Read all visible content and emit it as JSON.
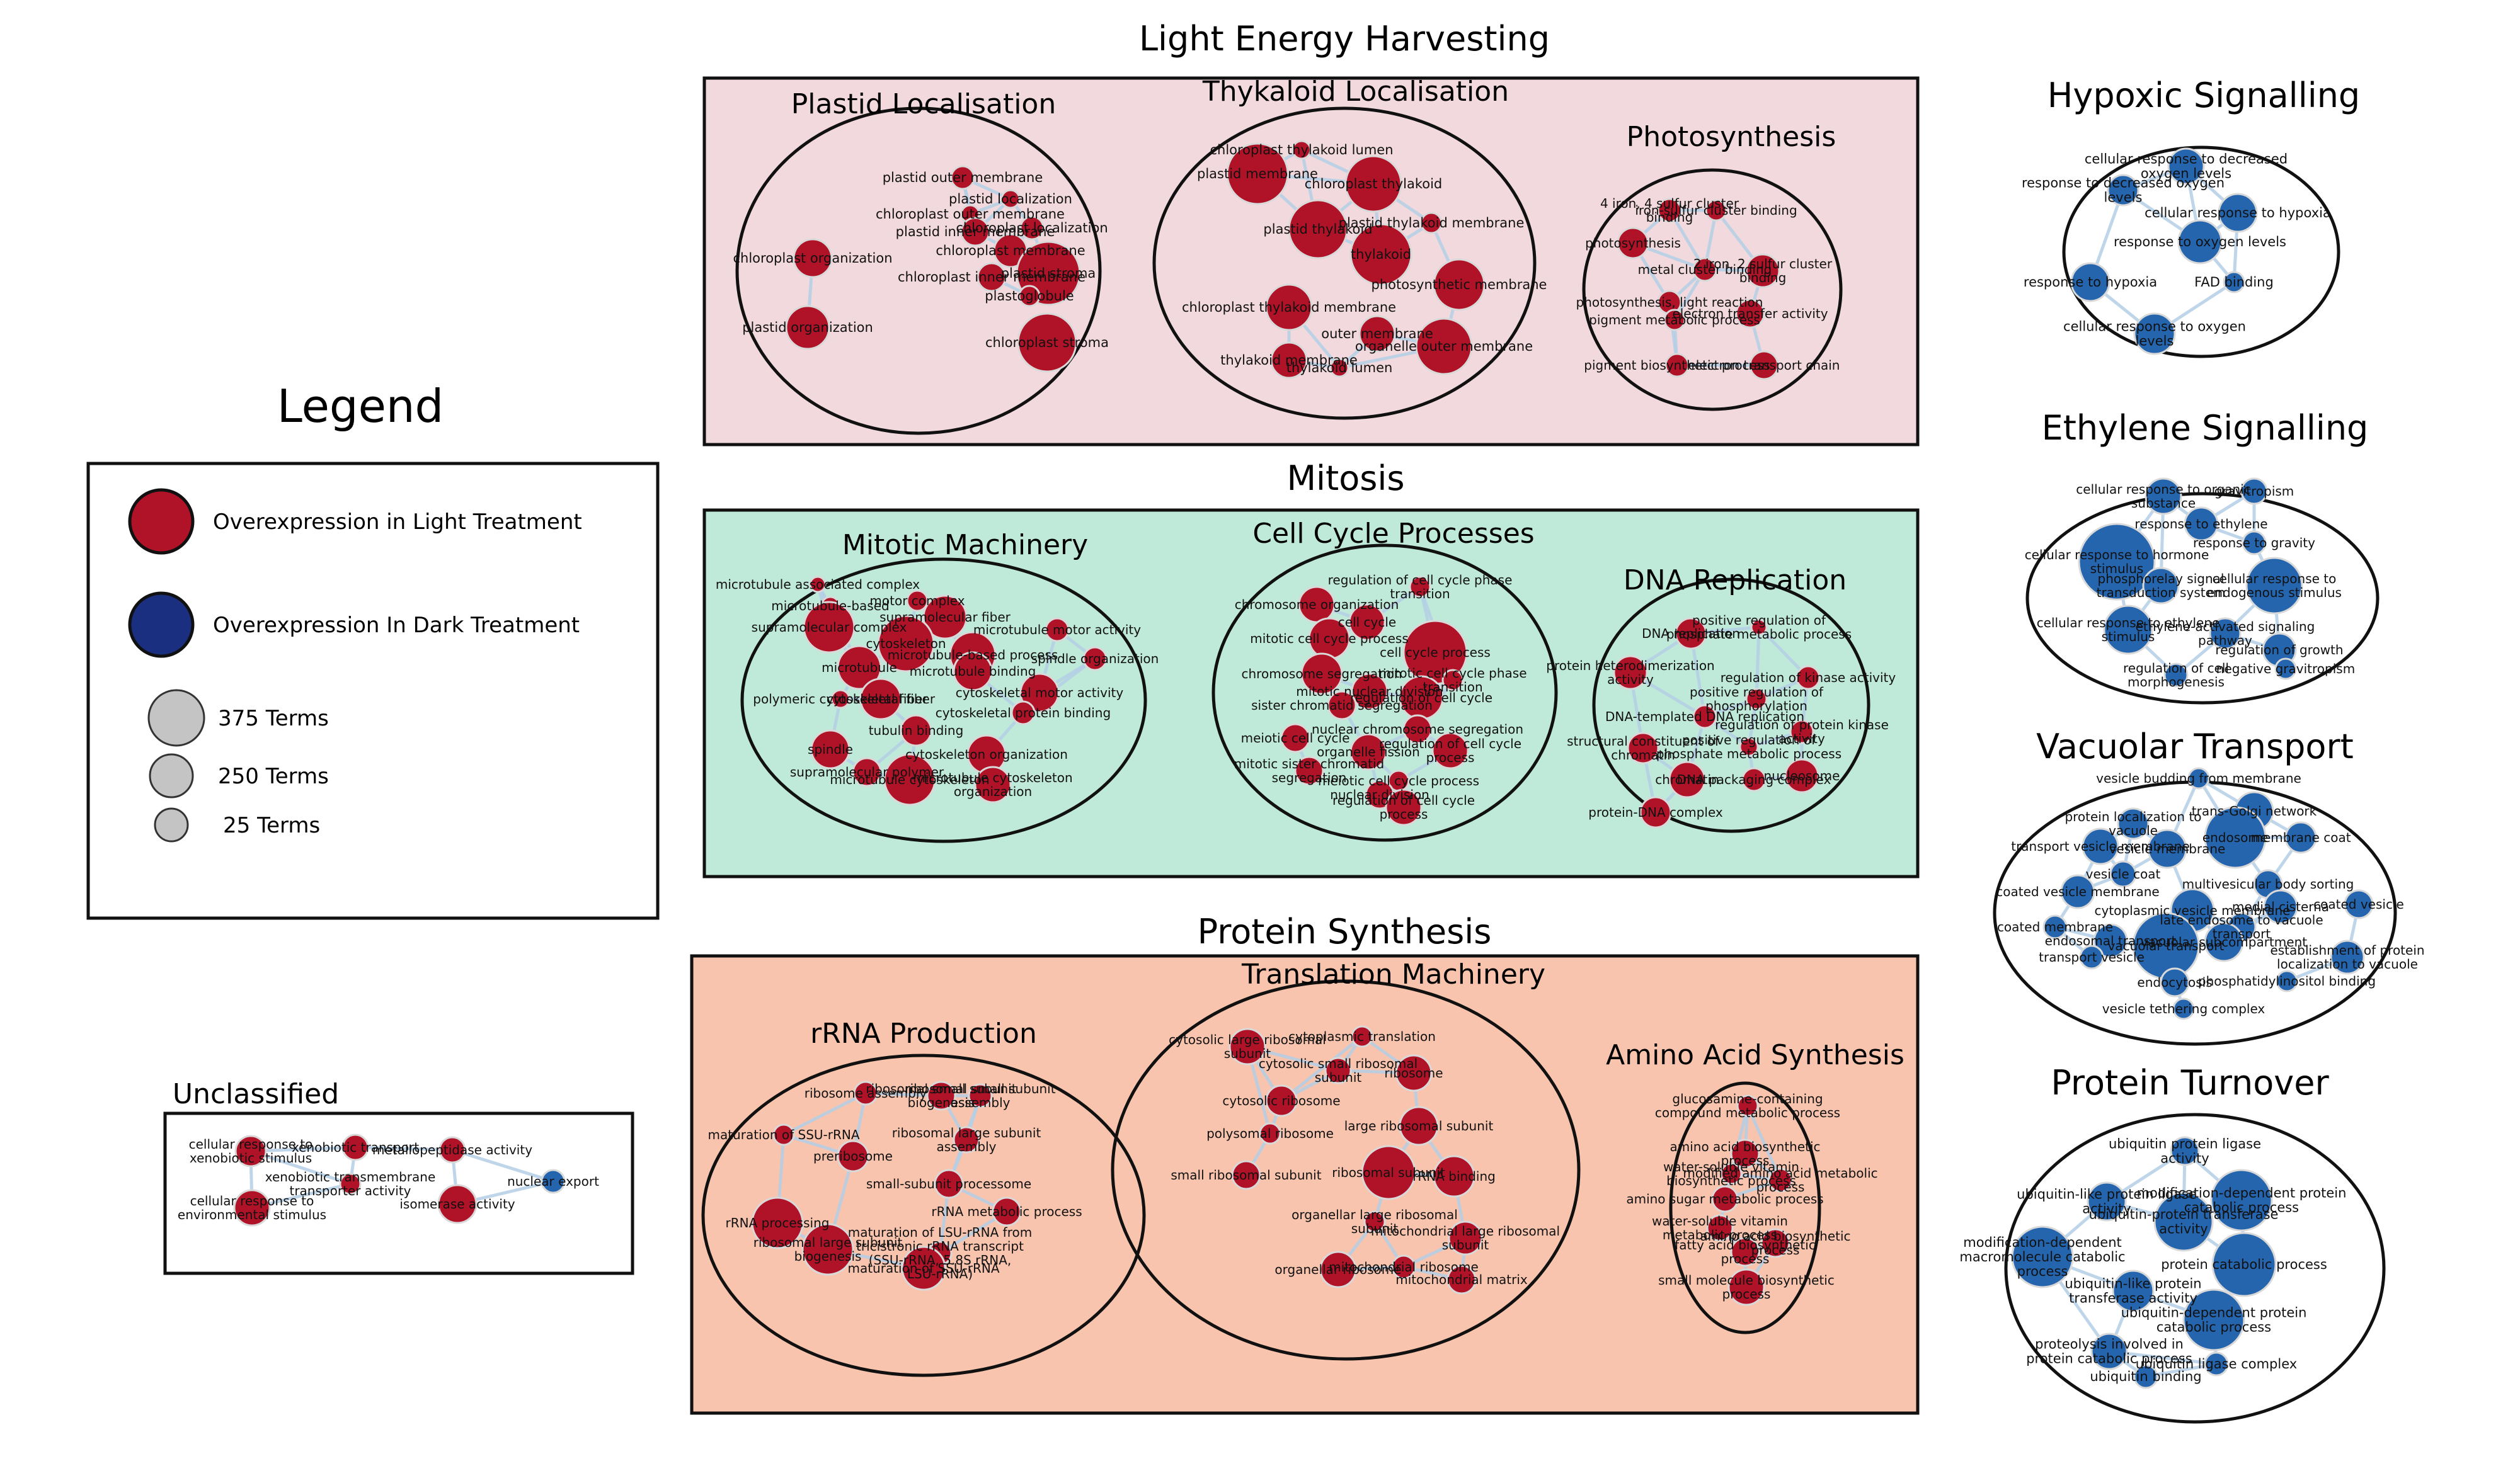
{
  "colors": {
    "red_node": "#b01227",
    "blue_node": "#2565ae",
    "legend_dark": "#1a2f80",
    "legend_gray": "#c4c4c4",
    "light_panel": "#f2d9dd",
    "mitosis_panel": "#bfe9d8",
    "protein_panel": "#f8c4ad",
    "edge": "#b4cfe6"
  },
  "sections": {
    "light": "Light Energy Harvesting",
    "mitosis": "Mitosis",
    "protein": "Protein Synthesis",
    "unclassified": "Unclassified"
  },
  "clusters": {
    "plastid": "Plastid Localisation",
    "thylakoid": "Thykaloid Localisation",
    "photosynthesis": "Photosynthesis",
    "mitotic": "Mitotic Machinery",
    "cellcycle": "Cell Cycle Processes",
    "dnarep": "DNA Replication",
    "translation": "Translation Machinery",
    "rrna": "rRNA Production",
    "aminoacid": "Amino Acid Synthesis",
    "hypoxic": "Hypoxic Signalling",
    "ethylene": "Ethylene Signalling",
    "vacuolar": "Vacuolar Transport",
    "turnover": "Protein Turnover"
  },
  "legend": {
    "title": "Legend",
    "light": "Overexpression in Light Treatment",
    "dark": "Overexpression In Dark Treatment",
    "size_large": "375 Terms",
    "size_mid": "250 Terms",
    "size_small": "25 Terms"
  },
  "node_labels": {
    "plastid": [
      "plastid outer membrane",
      "plastid localization",
      "chloroplast outer membrane",
      "chloroplast localization",
      "plastid inner membrane",
      "chloroplast membrane",
      "chloroplast organization",
      "chloroplast inner membrane",
      "plastid stroma",
      "plastoglobule",
      "plastid organization",
      "chloroplast stroma"
    ],
    "thylakoid": [
      "chloroplast thylakoid lumen",
      "plastid membrane",
      "chloroplast thylakoid",
      "plastid thylakoid membrane",
      "plastid thylakoid",
      "thylakoid",
      "photosynthetic membrane",
      "chloroplast thylakoid membrane",
      "outer membrane",
      "organelle outer membrane",
      "thylakoid membrane",
      "thylakoid lumen"
    ],
    "photosynthesis": [
      "4 iron, 4 sulfur cluster binding",
      "iron-sulfur cluster binding",
      "photosynthesis",
      "metal cluster binding",
      "2 iron, 2 sulfur cluster binding",
      "photosynthesis, light reaction",
      "electron transfer activity",
      "pigment metabolic process",
      "pigment biosynthetic process",
      "electron transport chain"
    ],
    "mitotic": [
      "microtubule associated complex",
      "microtubule-based",
      "motor complex",
      "supramolecular complex",
      "supramolecular fiber",
      "cytoskeleton",
      "microtubule-based process",
      "microtubule motor activity",
      "microtubule binding",
      "microtubule",
      "spindle organization",
      "cytoskeletal fiber",
      "polymeric cytoskeletal fiber",
      "cytoskeletal motor activity",
      "cytoskeletal protein binding",
      "tubulin binding",
      "spindle",
      "cytoskeleton organization",
      "microtubule cytoskeleton",
      "supramolecular polymer",
      "microtubule cytoskeleton organization"
    ],
    "cellcycle": [
      "chromosome organization",
      "regulation of cell cycle phase transition",
      "cell cycle",
      "mitotic cell cycle process",
      "cell cycle process",
      "chromosome segregation",
      "mitotic cell cycle phase transition",
      "mitotic nuclear division",
      "regulation of cell cycle",
      "sister chromatid segregation",
      "nuclear chromosome segregation",
      "meiotic cell cycle",
      "regulation of cell cycle process",
      "organelle fission",
      "mitotic sister chromatid segregation",
      "meiotic cell cycle process",
      "nuclear division",
      "regulation of cell cycle process"
    ],
    "dnarep": [
      "DNA replication",
      "positive regulation of phosphate metabolic process",
      "protein heterodimerization activity",
      "regulation of kinase activity",
      "positive regulation of phosphorylation",
      "DNA-templated DNA replication",
      "regulation of protein kinase activity",
      "structural constituent of chromatin",
      "positive regulation of phosphate metabolic process",
      "chromatin",
      "DNA packaging complex",
      "nucleosome",
      "protein-DNA complex"
    ],
    "translation": [
      "cytoplasmic translation",
      "cytosolic large ribosomal subunit",
      "cytosolic small ribosomal subunit",
      "ribosome",
      "cytosolic ribosome",
      "large ribosomal subunit",
      "polysomal ribosome",
      "small ribosomal subunit",
      "ribosomal subunit",
      "rRNA binding",
      "organellar large ribosomal subunit",
      "mitochondrial large ribosomal subunit",
      "mitochondrial ribosome",
      "organellar ribosome",
      "mitochondrial matrix"
    ],
    "rrna": [
      "ribosome assembly",
      "ribosomal small subunit biogenesis",
      "ribosomal small subunit assembly",
      "maturation of SSU-rRNA",
      "preribosome",
      "ribosomal large subunit assembly",
      "small-subunit processome",
      "rRNA metabolic process",
      "rRNA processing",
      "ribosomal large subunit biogenesis",
      "maturation of LSU-rRNA from tricistronic rRNA transcript (SSU-rRNA, 5.8S rRNA, LSU-rRNA)",
      "maturation of SSU-rRNA"
    ],
    "aminoacid": [
      "glucosamine-containing compound metabolic process",
      "amino acid biosynthetic process",
      "water-soluble vitamin biosynthetic process",
      "modified amino acid metabolic process",
      "amino sugar metabolic process",
      "water-soluble vitamin metabolic process",
      "amino acid biosynthetic process",
      "fatty acid biosynthetic process",
      "small molecule biosynthetic process"
    ],
    "hypoxic": [
      "cellular response to decreased oxygen levels",
      "response to decreased oxygen levels",
      "cellular response to hypoxia",
      "response to oxygen levels",
      "response to hypoxia",
      "FAD binding",
      "cellular response to oxygen levels"
    ],
    "ethylene": [
      "cellular response to organic substance",
      "gravitropism",
      "response to ethylene",
      "response to gravity",
      "cellular response to hormone stimulus",
      "phosphorelay signal transduction system",
      "cellular response to endogenous stimulus",
      "cellular response to ethylene stimulus",
      "ethylene-activated signaling pathway",
      "regulation of growth",
      "negative gravitropism",
      "regulation of cell morphogenesis"
    ],
    "vacuolar": [
      "vesicle budding from membrane",
      "trans-Golgi network",
      "protein localization to vacuole",
      "endosome",
      "transport vesicle membrane",
      "vesicle membrane",
      "membrane coat",
      "vesicle coat",
      "multivesicular body sorting",
      "coated vesicle membrane",
      "medial cisterna",
      "cytoplasmic vesicle membrane",
      "coated vesicle",
      "late endosome to vacuole transport",
      "coated membrane",
      "endosomal transport",
      "vacuolar transport",
      "vacuolar subcompartment",
      "establishment of protein localization to vacuole",
      "transport vesicle",
      "endocytosis",
      "phosphatidylinositol binding",
      "vesicle tethering complex"
    ],
    "turnover": [
      "ubiquitin protein ligase activity",
      "modification-dependent protein catabolic process",
      "ubiquitin-like protein ligase activity",
      "ubiquitin-protein transferase activity",
      "modification-dependent macromolecule catabolic process",
      "protein catabolic process",
      "ubiquitin-like protein transferase activity",
      "ubiquitin-dependent protein catabolic process",
      "proteolysis involved in protein catabolic process",
      "ubiquitin ligase complex",
      "ubiquitin binding"
    ],
    "unclassified": [
      "cellular response to xenobiotic stimulus",
      "xenobiotic transport",
      "metallopeptidase activity",
      "xenobiotic transmembrane transporter activity",
      "nuclear export",
      "cellular response to environmental stimulus",
      "isomerase activity"
    ]
  }
}
